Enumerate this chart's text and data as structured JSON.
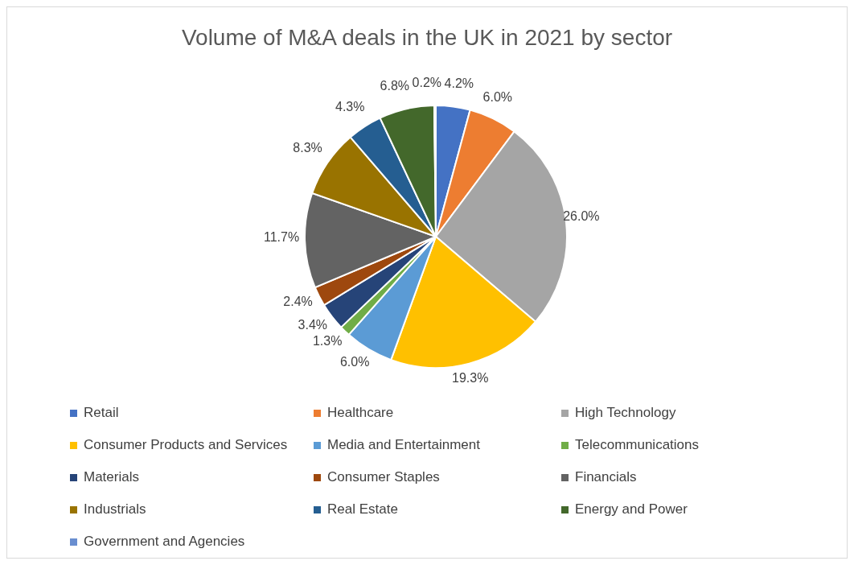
{
  "chart_data": {
    "type": "pie",
    "title": "Volume of M&A deals in the UK in 2021 by sector",
    "categories": [
      "Retail",
      "Healthcare",
      "High Technology",
      "Consumer Products and Services",
      "Media and Entertainment",
      "Telecommunications",
      "Materials",
      "Consumer Staples",
      "Financials",
      "Industrials",
      "Real Estate",
      "Energy and Power",
      "Government and Agencies"
    ],
    "values": [
      4.2,
      6.0,
      26.0,
      19.3,
      6.0,
      1.3,
      3.4,
      2.4,
      11.7,
      8.3,
      4.3,
      6.8,
      0.2
    ],
    "value_labels": [
      "4.2%",
      "6.0%",
      "26.0%",
      "19.3%",
      "6.0%",
      "1.3%",
      "3.4%",
      "2.4%",
      "11.7%",
      "8.3%",
      "4.3%",
      "6.8%",
      "0.2%"
    ],
    "colors": [
      "#4472c4",
      "#ed7d31",
      "#a5a5a5",
      "#ffc000",
      "#5b9bd5",
      "#70ad47",
      "#264478",
      "#9e480e",
      "#636363",
      "#997300",
      "#255e91",
      "#43682b",
      "#698ed0"
    ],
    "legend": "bottom"
  }
}
